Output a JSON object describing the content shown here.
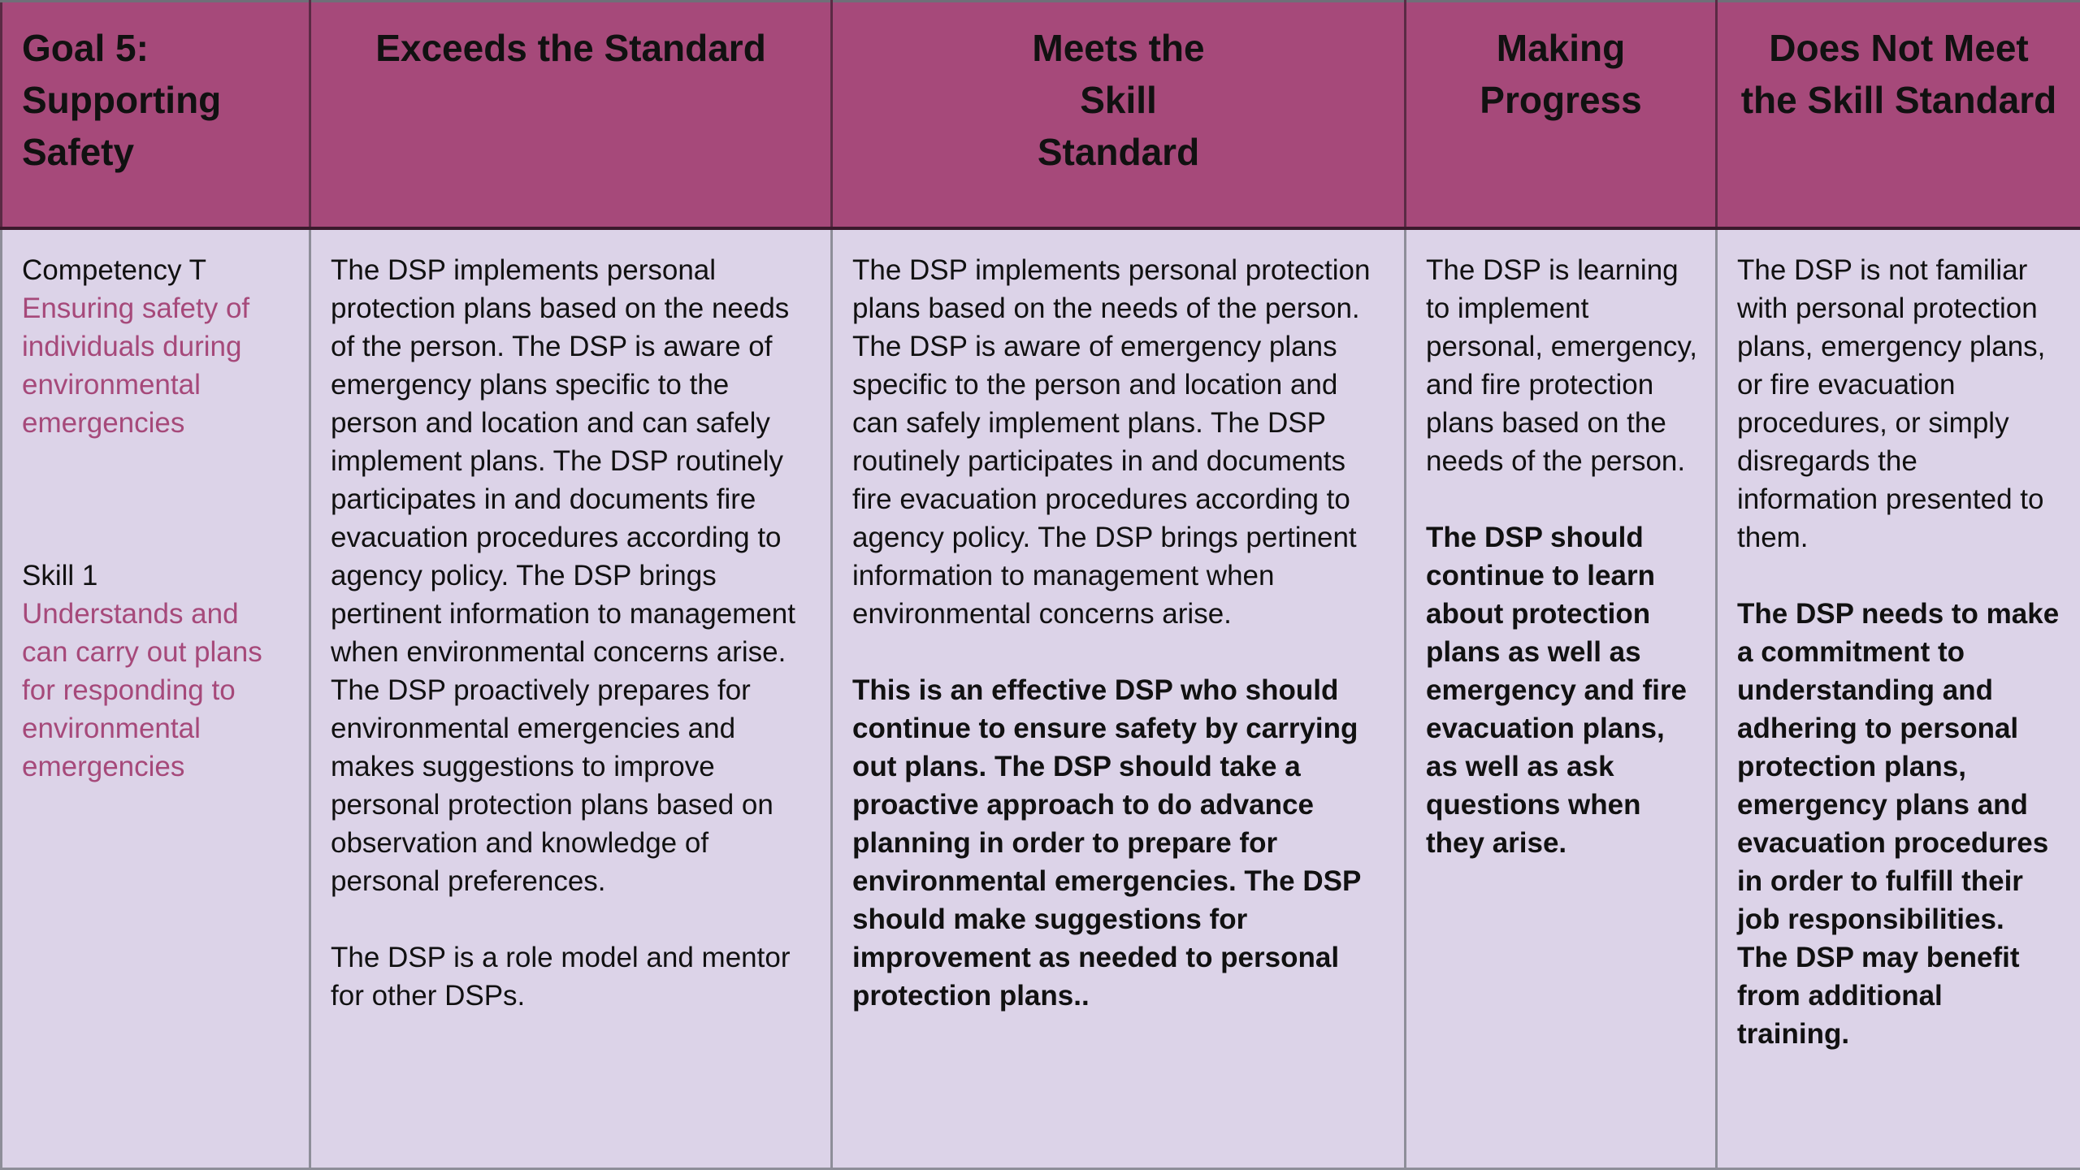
{
  "headers": {
    "goal": [
      "Goal 5:",
      "Supporting",
      "Safety"
    ],
    "exceeds": [
      "Exceeds the Standard"
    ],
    "meets": [
      "Meets the",
      "Skill",
      "Standard"
    ],
    "making": [
      "Making",
      "Progress"
    ],
    "does_not": [
      "Does Not Meet",
      "the Skill Standard"
    ]
  },
  "goal_cell": {
    "competency_label": "Competency T",
    "competency_text": "Ensuring safety of individuals during environmental emergencies",
    "skill_label": "Skill 1",
    "skill_text": "Understands and can carry out plans for responding to environmental emergencies"
  },
  "exceeds_cell": {
    "description": "The DSP implements personal protection plans based on the needs of the person. The DSP is aware of emergency plans specific to the person and location and can safely implement plans. The DSP routinely participates in and documents fire evacuation procedures according to agency policy. The DSP brings pertinent information to management when environmental concerns arise. The DSP proactively prepares for environmental emergencies and makes suggestions to improve personal protection plans based on observation and knowledge of personal preferences.",
    "summary": "The DSP is a role model and mentor for other DSPs."
  },
  "meets_cell": {
    "description": "The DSP implements personal protection plans based on the needs of the person. The DSP is aware of emergency plans specific to the person and location and can safely implement plans. The DSP routinely participates in and documents fire evacuation procedures according to agency policy. The DSP brings pertinent information to management when environmental concerns arise.",
    "summary": "This is an effective DSP who should continue to ensure safety by carrying out plans.  The DSP should take a proactive approach to do advance planning in order to prepare for environmental emergencies.  The DSP should make suggestions for improvement as needed to personal protection plans.."
  },
  "making_cell": {
    "description": "The DSP is learning to implement personal, emergency, and fire protection plans based on the needs of the person.",
    "summary": "The DSP should continue to learn about protection plans as well as emergency and fire evacuation plans, as well as ask questions when they arise."
  },
  "does_not_cell": {
    "description": "The DSP is not familiar with personal protection plans, emergency plans, or fire evacuation procedures, or simply disregards the information presented to them.",
    "summary": "The DSP needs to make a commitment to understanding and adhering to personal protection plans, emergency plans and evacuation procedures in order to fulfill their job responsibilities. The DSP may benefit from additional training."
  },
  "colors": {
    "header_bg": "#a6497a",
    "body_bg": "#dcd3e8",
    "accent_text": "#a6497a"
  }
}
